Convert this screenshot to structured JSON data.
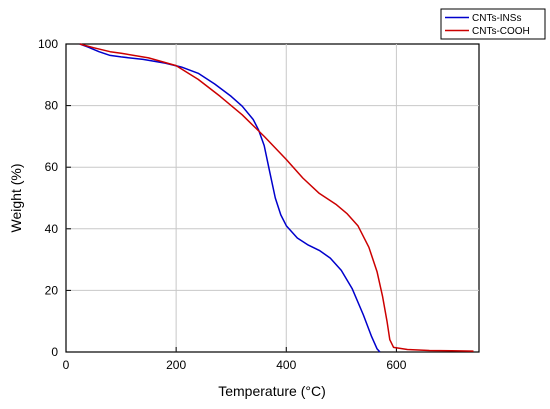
{
  "chart_data": {
    "type": "line",
    "xlabel": "Temperature (°C)",
    "ylabel": "Weight (%)",
    "xlim": [
      0,
      750
    ],
    "ylim": [
      0,
      100
    ],
    "x_ticks": [
      0,
      200,
      400,
      600
    ],
    "y_ticks": [
      0,
      20,
      40,
      60,
      80,
      100
    ],
    "grid": true,
    "legend_position": "top-right",
    "series": [
      {
        "name": "CNTs-INSs",
        "color": "#0000cc",
        "x": [
          25,
          40,
          60,
          80,
          100,
          140,
          180,
          210,
          240,
          270,
          300,
          320,
          340,
          350,
          360,
          370,
          380,
          390,
          400,
          420,
          440,
          460,
          480,
          500,
          520,
          540,
          555,
          565,
          570
        ],
        "y": [
          100,
          99,
          97.5,
          96.3,
          95.8,
          95,
          93.8,
          92.5,
          90.5,
          87,
          83,
          79.8,
          75.5,
          72,
          67,
          58.5,
          50,
          44.5,
          41,
          37,
          34.7,
          33,
          30.5,
          26.5,
          20.5,
          12,
          5,
          1,
          0
        ]
      },
      {
        "name": "CNTs-COOH",
        "color": "#cc0000",
        "x": [
          25,
          50,
          80,
          100,
          150,
          200,
          240,
          280,
          320,
          360,
          400,
          430,
          460,
          490,
          510,
          530,
          550,
          565,
          575,
          583,
          588,
          595,
          620,
          660,
          700,
          740
        ],
        "y": [
          100,
          98.8,
          97.5,
          97,
          95.5,
          93,
          88.5,
          83,
          77,
          70,
          62.5,
          56.5,
          51.5,
          48,
          45,
          41,
          34,
          26,
          18,
          10,
          4,
          1.5,
          0.8,
          0.5,
          0.4,
          0.3
        ]
      }
    ]
  }
}
